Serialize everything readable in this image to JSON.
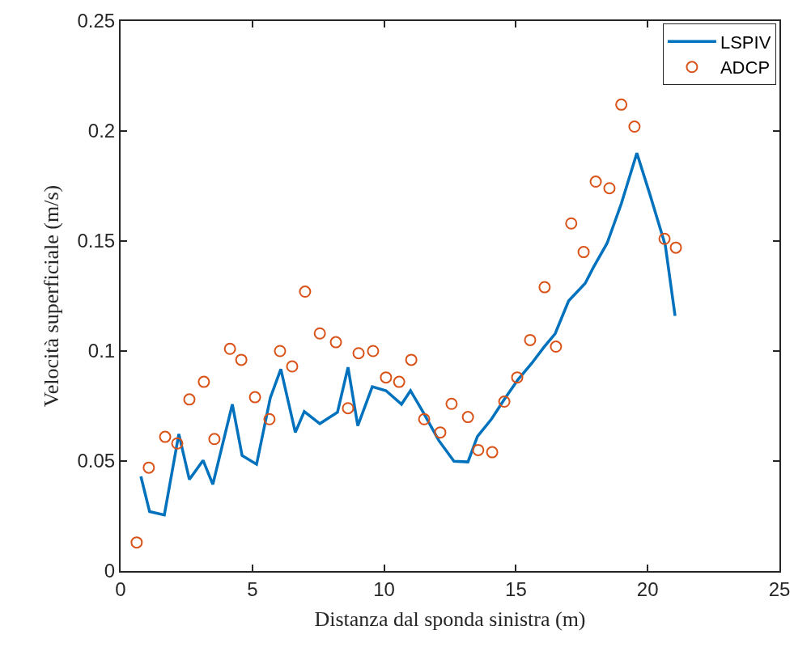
{
  "chart_data": {
    "type": "line",
    "xlabel": "Distanza dal sponda sinistra (m)",
    "ylabel": "Velocità superficiale (m/s)",
    "xlim": [
      0,
      25
    ],
    "xticks": [
      0,
      5,
      10,
      15,
      20,
      25
    ],
    "ylim": [
      0,
      0.25
    ],
    "yticks": [
      0,
      0.05,
      0.1,
      0.15,
      0.2,
      0.25
    ],
    "legend": "top right",
    "series": [
      {
        "name": "LSPIV",
        "color": "#0072bd",
        "line_style": "solid",
        "marker": "none",
        "x": [
          0.77,
          1.1,
          1.66,
          2.21,
          2.61,
          3.13,
          3.5,
          4.24,
          4.61,
          5.16,
          5.68,
          6.08,
          6.63,
          6.97,
          7.56,
          8.23,
          8.63,
          9.0,
          9.55,
          10.07,
          10.66,
          11.0,
          11.49,
          12.07,
          12.65,
          13.18,
          13.54,
          14.07,
          14.56,
          15.08,
          15.6,
          16.06,
          16.49,
          17.0,
          17.63,
          17.94,
          18.46,
          19.0,
          19.59,
          20.09,
          20.67,
          21.04
        ],
        "values": [
          0.043,
          0.027,
          0.0255,
          0.0623,
          0.0416,
          0.0503,
          0.0394,
          0.0758,
          0.0525,
          0.0485,
          0.0787,
          0.0918,
          0.063,
          0.0725,
          0.067,
          0.0722,
          0.0926,
          0.066,
          0.0838,
          0.082,
          0.0758,
          0.082,
          0.072,
          0.0594,
          0.0499,
          0.0496,
          0.0612,
          0.069,
          0.078,
          0.087,
          0.0944,
          0.1017,
          0.1079,
          0.1228,
          0.1308,
          0.138,
          0.149,
          0.167,
          0.19,
          0.171,
          0.148,
          0.116
        ]
      },
      {
        "name": "ADCP",
        "type": "scatter",
        "color": "#d95319",
        "marker": "circle",
        "x": [
          0.61,
          1.07,
          1.69,
          2.15,
          2.61,
          3.16,
          3.56,
          4.15,
          4.58,
          5.1,
          5.65,
          6.05,
          6.51,
          7.0,
          7.56,
          8.17,
          8.63,
          9.03,
          9.58,
          10.07,
          10.57,
          11.03,
          11.52,
          12.13,
          12.56,
          13.18,
          13.57,
          14.1,
          14.56,
          15.05,
          15.54,
          16.09,
          16.52,
          17.1,
          17.57,
          18.03,
          18.55,
          19.0,
          19.5,
          20.64,
          21.07
        ],
        "values": [
          0.013,
          0.047,
          0.061,
          0.058,
          0.078,
          0.086,
          0.06,
          0.101,
          0.096,
          0.079,
          0.069,
          0.1,
          0.093,
          0.127,
          0.108,
          0.104,
          0.074,
          0.099,
          0.1,
          0.088,
          0.086,
          0.096,
          0.069,
          0.063,
          0.076,
          0.07,
          0.055,
          0.054,
          0.077,
          0.088,
          0.105,
          0.129,
          0.102,
          0.158,
          0.145,
          0.177,
          0.174,
          0.212,
          0.202,
          0.151,
          0.147
        ]
      }
    ]
  }
}
